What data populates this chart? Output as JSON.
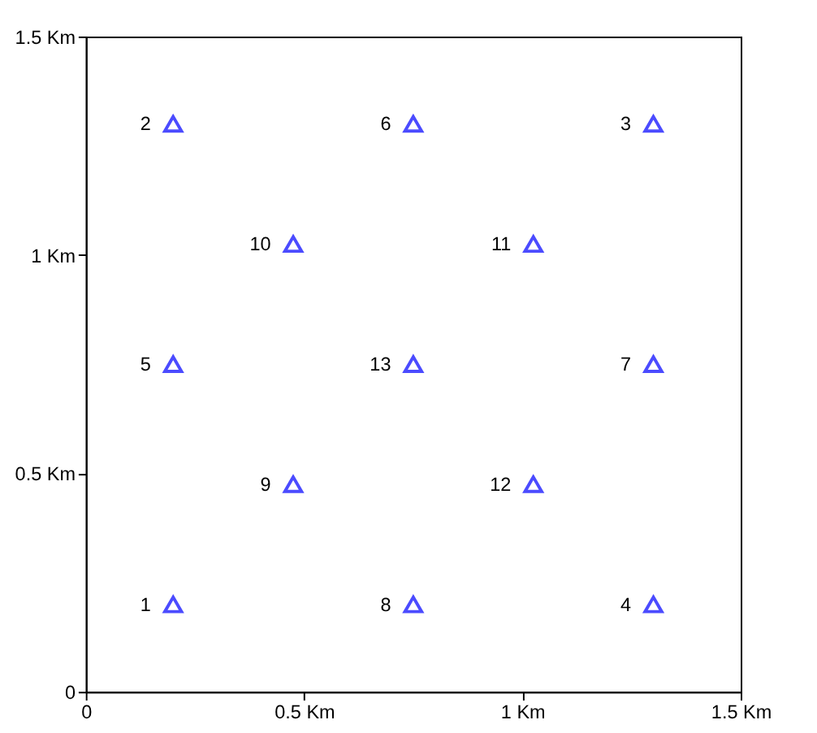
{
  "chart_data": {
    "type": "scatter",
    "x": [
      0.2,
      0.2,
      1.3,
      1.3,
      0.2,
      0.75,
      1.3,
      0.75,
      0.475,
      0.475,
      1.025,
      1.025,
      0.75
    ],
    "values": [
      0.2,
      1.3,
      1.3,
      0.2,
      0.75,
      1.3,
      0.75,
      0.2,
      0.475,
      1.025,
      1.025,
      0.475,
      0.75
    ],
    "annotations": [
      {
        "text": "1",
        "x": 0.2,
        "y": 0.2
      },
      {
        "text": "2",
        "x": 0.2,
        "y": 1.3
      },
      {
        "text": "3",
        "x": 1.3,
        "y": 1.3
      },
      {
        "text": "4",
        "x": 1.3,
        "y": 0.2
      },
      {
        "text": "5",
        "x": 0.2,
        "y": 0.75
      },
      {
        "text": "6",
        "x": 0.75,
        "y": 1.3
      },
      {
        "text": "7",
        "x": 1.3,
        "y": 0.75
      },
      {
        "text": "8",
        "x": 0.75,
        "y": 0.2
      },
      {
        "text": "9",
        "x": 0.475,
        "y": 0.475
      },
      {
        "text": "10",
        "x": 0.475,
        "y": 1.025
      },
      {
        "text": "11",
        "x": 1.025,
        "y": 1.025
      },
      {
        "text": "12",
        "x": 1.025,
        "y": 0.475
      },
      {
        "text": "13",
        "x": 0.75,
        "y": 0.75
      }
    ],
    "color": "#0000ff",
    "marker": "triangle",
    "grid": false,
    "xlim": [
      0,
      1.5
    ],
    "ylim": [
      0,
      1.5
    ],
    "xticks": [
      0,
      {
        "value": 0.5,
        "label": "0.5 Km"
      },
      {
        "value": 1,
        "label": "1 Km"
      },
      {
        "value": 1.5,
        "label": "1.5 Km"
      }
    ],
    "yticks": [
      0,
      {
        "value": 0.5,
        "label": "0.5 Km"
      },
      {
        "value": 1,
        "label": "1 Km"
      },
      {
        "value": 1.5,
        "label": "1.5 Km"
      }
    ]
  }
}
